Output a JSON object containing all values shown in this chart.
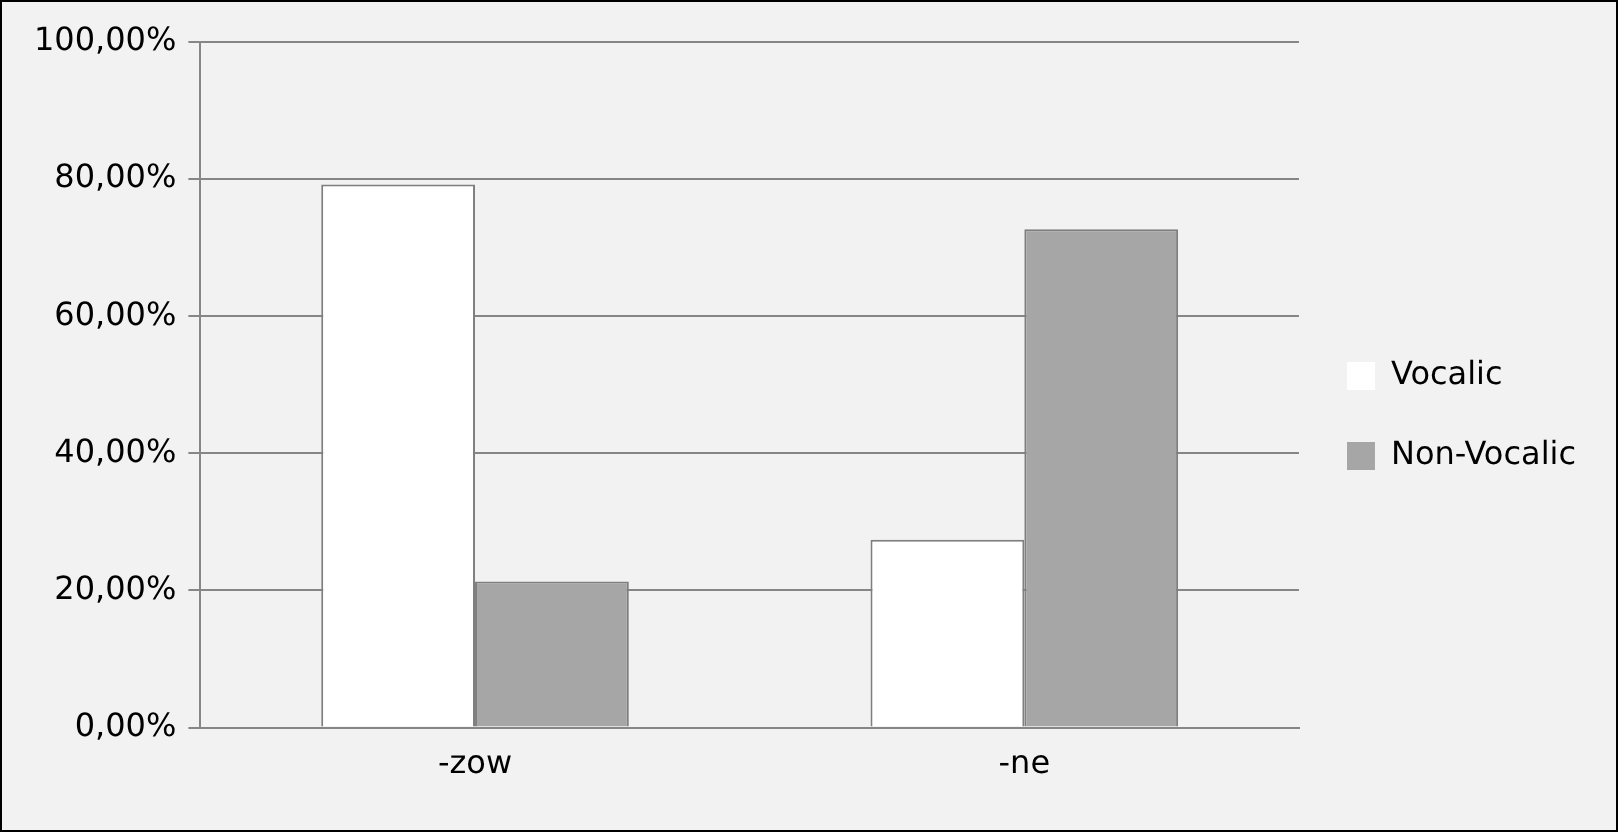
{
  "chart_data": {
    "type": "bar",
    "categories": [
      "-zow",
      "-ne"
    ],
    "series": [
      {
        "name": "Vocalic",
        "color": "#ffffff",
        "values": [
          79.2,
          27.4
        ]
      },
      {
        "name": "Non-Vocalic",
        "color": "#a6a6a6",
        "values": [
          21.3,
          72.7
        ]
      }
    ],
    "ylim": [
      0,
      100
    ],
    "yticks": [
      {
        "value": 0,
        "label": "0,00%"
      },
      {
        "value": 20,
        "label": "20,00%"
      },
      {
        "value": 40,
        "label": "40,00%"
      },
      {
        "value": 60,
        "label": "60,00%"
      },
      {
        "value": 80,
        "label": "80,00%"
      },
      {
        "value": 100,
        "label": "100,00%"
      }
    ],
    "grid": "y",
    "legend": "right"
  }
}
